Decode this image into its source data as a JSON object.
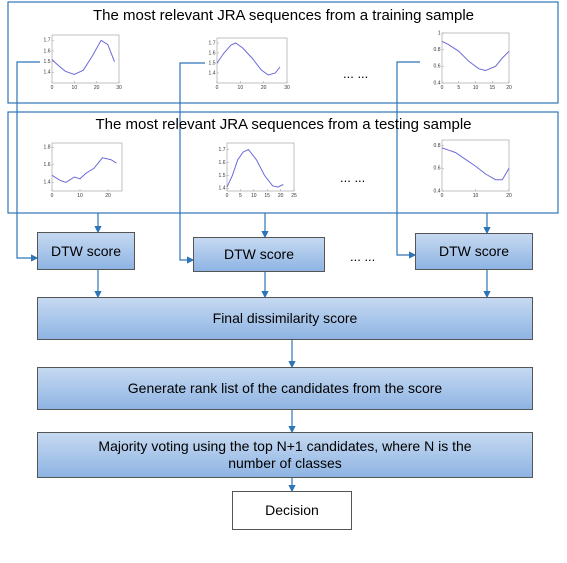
{
  "panels": [
    {
      "title": "The most relevant JRA sequences from a training sample",
      "ellipsis": "... ...",
      "plots": [
        {
          "type": "line",
          "color": "#6a6ad8",
          "x": [
            0,
            3,
            6,
            10,
            14,
            18,
            22,
            25,
            28
          ],
          "values": [
            1.52,
            1.46,
            1.41,
            1.38,
            1.42,
            1.55,
            1.7,
            1.66,
            1.5
          ],
          "xlim": [
            0,
            30
          ],
          "ylim": [
            1.3,
            1.75
          ],
          "xticks": [
            0,
            10,
            20,
            30
          ],
          "yticks": [
            1.4,
            1.5,
            1.6,
            1.7
          ]
        },
        {
          "type": "line",
          "color": "#6a6ad8",
          "x": [
            0,
            3,
            6,
            8,
            11,
            15,
            19,
            22,
            25,
            27
          ],
          "values": [
            1.5,
            1.6,
            1.68,
            1.7,
            1.65,
            1.55,
            1.43,
            1.38,
            1.4,
            1.46
          ],
          "xlim": [
            0,
            30
          ],
          "ylim": [
            1.3,
            1.75
          ],
          "xticks": [
            0,
            10,
            20,
            30
          ],
          "yticks": [
            1.4,
            1.5,
            1.6,
            1.7
          ]
        },
        {
          "type": "line",
          "color": "#6a6ad8",
          "x": [
            0,
            2,
            5,
            8,
            11,
            13,
            16,
            18,
            20
          ],
          "values": [
            0.9,
            0.86,
            0.78,
            0.66,
            0.57,
            0.55,
            0.6,
            0.7,
            0.78
          ],
          "xlim": [
            0,
            20
          ],
          "ylim": [
            0.4,
            1
          ],
          "xticks": [
            0,
            5,
            10,
            15,
            20
          ],
          "yticks": [
            0.4,
            0.6,
            0.8,
            1
          ]
        }
      ]
    },
    {
      "title": "The most relevant JRA sequences from a testing sample",
      "ellipsis": "... ...",
      "plots": [
        {
          "type": "line",
          "color": "#6a6ad8",
          "x": [
            0,
            3,
            5,
            8,
            10,
            12,
            15,
            18,
            21,
            23
          ],
          "values": [
            1.48,
            1.42,
            1.4,
            1.46,
            1.44,
            1.5,
            1.56,
            1.68,
            1.66,
            1.62
          ],
          "xlim": [
            0,
            25
          ],
          "ylim": [
            1.3,
            1.85
          ],
          "xticks": [
            0,
            10,
            20
          ],
          "yticks": [
            1.4,
            1.6,
            1.8
          ]
        },
        {
          "type": "line",
          "color": "#6a6ad8",
          "x": [
            0,
            2,
            4,
            6,
            8,
            11,
            14,
            17,
            19,
            21
          ],
          "values": [
            1.41,
            1.5,
            1.62,
            1.68,
            1.7,
            1.62,
            1.5,
            1.42,
            1.41,
            1.43
          ],
          "xlim": [
            0,
            25
          ],
          "ylim": [
            1.38,
            1.75
          ],
          "xticks": [
            0,
            5,
            10,
            15,
            20,
            25
          ],
          "yticks": [
            1.4,
            1.5,
            1.6,
            1.7
          ]
        },
        {
          "type": "line",
          "color": "#6a6ad8",
          "x": [
            0,
            2,
            4,
            7,
            10,
            13,
            16,
            18,
            20
          ],
          "values": [
            0.78,
            0.76,
            0.74,
            0.68,
            0.62,
            0.55,
            0.5,
            0.5,
            0.6
          ],
          "xlim": [
            0,
            20
          ],
          "ylim": [
            0.4,
            0.85
          ],
          "xticks": [
            0,
            10,
            20
          ],
          "yticks": [
            0.4,
            0.6,
            0.8
          ]
        }
      ]
    }
  ],
  "dtw_boxes": [
    "DTW score",
    "DTW score",
    "DTW score"
  ],
  "dtw_ellipsis": "... ...",
  "steps": [
    "Final dissimilarity score",
    "Generate rank list of the candidates from the score",
    "Majority voting using the top N+1 candidates, where N is the number of classes"
  ],
  "decision": "Decision"
}
